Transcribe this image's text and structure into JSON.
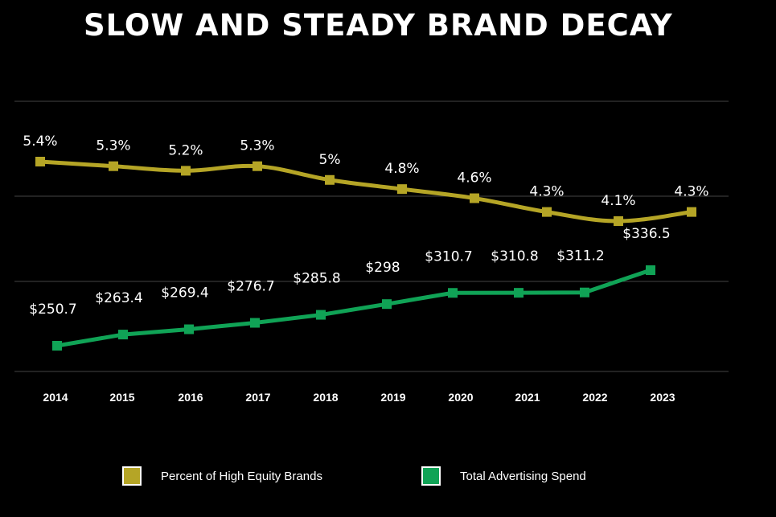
{
  "chart_data": {
    "type": "line",
    "title": "SLOW AND STEADY BRAND DECAY",
    "categories": [
      "2014",
      "2015",
      "2016",
      "2017",
      "2018",
      "2019",
      "2020",
      "2021",
      "2022",
      "2023"
    ],
    "series": [
      {
        "name": "Percent of High Equity Brands",
        "values": [
          5.4,
          5.3,
          5.2,
          5.3,
          5.0,
          4.8,
          4.6,
          4.3,
          4.1,
          4.3
        ],
        "labels": [
          "5.4%",
          "5.3%",
          "5.2%",
          "5.3%",
          "5%",
          "4.8%",
          "4.6%",
          "4.3%",
          "4.1%",
          "4.3%"
        ],
        "color": "#b5a526"
      },
      {
        "name": "Total Advertising Spend",
        "values": [
          250.7,
          263.4,
          269.4,
          276.7,
          285.8,
          298,
          310.7,
          310.8,
          311.2,
          336.5
        ],
        "labels": [
          "$250.7",
          "$263.4",
          "$269.4",
          "$276.7",
          "$285.8",
          "$298",
          "$310.7",
          "$310.8",
          "$311.2",
          "$336.5"
        ],
        "color": "#10a356"
      }
    ],
    "grid": true,
    "legend_position": "bottom"
  }
}
